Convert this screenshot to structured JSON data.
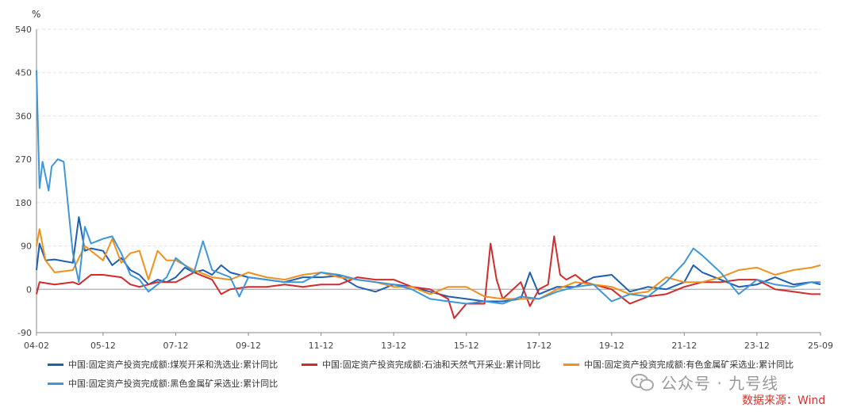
{
  "chart_data": {
    "type": "line",
    "unit_label": "%",
    "ylim": [
      -90,
      540
    ],
    "yticks": [
      -90,
      0,
      90,
      180,
      270,
      360,
      450,
      540
    ],
    "xticks": [
      "04-02",
      "05-12",
      "07-12",
      "09-12",
      "11-12",
      "13-12",
      "15-12",
      "17-12",
      "19-12",
      "21-12",
      "23-12",
      "25-09"
    ],
    "x_start": "2004-02",
    "x_end": "2025-09",
    "grid": "horizontal-dashed",
    "legend_position": "bottom",
    "series": [
      {
        "name": "中国:固定资产投资完成额:煤炭开采和洗选业:累计同比",
        "color": "#1f5fb0",
        "points": [
          [
            "2004-02",
            40
          ],
          [
            "2004-03",
            95
          ],
          [
            "2004-05",
            60
          ],
          [
            "2004-08",
            62
          ],
          [
            "2005-02",
            55
          ],
          [
            "2005-04",
            150
          ],
          [
            "2005-06",
            80
          ],
          [
            "2005-08",
            85
          ],
          [
            "2005-12",
            80
          ],
          [
            "2006-03",
            50
          ],
          [
            "2006-06",
            65
          ],
          [
            "2006-09",
            40
          ],
          [
            "2006-12",
            30
          ],
          [
            "2007-03",
            10
          ],
          [
            "2007-06",
            20
          ],
          [
            "2007-09",
            15
          ],
          [
            "2007-12",
            25
          ],
          [
            "2008-03",
            45
          ],
          [
            "2008-06",
            35
          ],
          [
            "2008-09",
            40
          ],
          [
            "2008-12",
            30
          ],
          [
            "2009-03",
            50
          ],
          [
            "2009-06",
            35
          ],
          [
            "2009-09",
            30
          ],
          [
            "2009-12",
            25
          ],
          [
            "2010-06",
            20
          ],
          [
            "2010-12",
            15
          ],
          [
            "2011-06",
            25
          ],
          [
            "2011-12",
            25
          ],
          [
            "2012-06",
            28
          ],
          [
            "2012-12",
            5
          ],
          [
            "2013-06",
            -5
          ],
          [
            "2013-12",
            10
          ],
          [
            "2014-06",
            5
          ],
          [
            "2014-12",
            -5
          ],
          [
            "2015-06",
            -15
          ],
          [
            "2015-12",
            -20
          ],
          [
            "2016-06",
            -25
          ],
          [
            "2016-12",
            -25
          ],
          [
            "2017-06",
            -20
          ],
          [
            "2017-09",
            35
          ],
          [
            "2017-12",
            -10
          ],
          [
            "2018-06",
            5
          ],
          [
            "2018-12",
            5
          ],
          [
            "2019-06",
            25
          ],
          [
            "2019-12",
            30
          ],
          [
            "2020-06",
            -5
          ],
          [
            "2020-12",
            5
          ],
          [
            "2021-06",
            0
          ],
          [
            "2021-12",
            15
          ],
          [
            "2022-03",
            50
          ],
          [
            "2022-06",
            35
          ],
          [
            "2022-12",
            20
          ],
          [
            "2023-06",
            5
          ],
          [
            "2023-12",
            10
          ],
          [
            "2024-06",
            25
          ],
          [
            "2024-12",
            10
          ],
          [
            "2025-06",
            15
          ],
          [
            "2025-09",
            10
          ]
        ]
      },
      {
        "name": "中国:固定资产投资完成额:石油和天然气开采业:累计同比",
        "color": "#d32b2b",
        "points": [
          [
            "2004-02",
            -10
          ],
          [
            "2004-03",
            15
          ],
          [
            "2004-08",
            10
          ],
          [
            "2005-02",
            15
          ],
          [
            "2005-04",
            10
          ],
          [
            "2005-08",
            30
          ],
          [
            "2005-12",
            30
          ],
          [
            "2006-06",
            25
          ],
          [
            "2006-09",
            10
          ],
          [
            "2006-12",
            5
          ],
          [
            "2007-06",
            15
          ],
          [
            "2007-12",
            15
          ],
          [
            "2008-06",
            35
          ],
          [
            "2008-12",
            20
          ],
          [
            "2009-03",
            -10
          ],
          [
            "2009-06",
            0
          ],
          [
            "2009-12",
            5
          ],
          [
            "2010-06",
            5
          ],
          [
            "2010-12",
            10
          ],
          [
            "2011-06",
            5
          ],
          [
            "2011-12",
            10
          ],
          [
            "2012-06",
            10
          ],
          [
            "2012-12",
            25
          ],
          [
            "2013-06",
            20
          ],
          [
            "2013-12",
            20
          ],
          [
            "2014-06",
            5
          ],
          [
            "2014-12",
            0
          ],
          [
            "2015-06",
            -20
          ],
          [
            "2015-08",
            -60
          ],
          [
            "2015-12",
            -30
          ],
          [
            "2016-06",
            -30
          ],
          [
            "2016-08",
            95
          ],
          [
            "2016-10",
            20
          ],
          [
            "2016-12",
            -20
          ],
          [
            "2017-06",
            15
          ],
          [
            "2017-09",
            -35
          ],
          [
            "2017-12",
            0
          ],
          [
            "2018-03",
            10
          ],
          [
            "2018-05",
            110
          ],
          [
            "2018-07",
            30
          ],
          [
            "2018-09",
            20
          ],
          [
            "2018-12",
            30
          ],
          [
            "2019-03",
            15
          ],
          [
            "2019-06",
            10
          ],
          [
            "2019-12",
            0
          ],
          [
            "2020-06",
            -30
          ],
          [
            "2020-12",
            -15
          ],
          [
            "2021-06",
            -10
          ],
          [
            "2021-12",
            5
          ],
          [
            "2022-06",
            15
          ],
          [
            "2022-12",
            15
          ],
          [
            "2023-06",
            20
          ],
          [
            "2023-12",
            20
          ],
          [
            "2024-06",
            0
          ],
          [
            "2024-12",
            -5
          ],
          [
            "2025-06",
            -10
          ],
          [
            "2025-09",
            -10
          ]
        ]
      },
      {
        "name": "中国:固定资产投资完成额:有色金属矿采选业:累计同比",
        "color": "#f0911e",
        "points": [
          [
            "2004-02",
            90
          ],
          [
            "2004-03",
            125
          ],
          [
            "2004-05",
            60
          ],
          [
            "2004-08",
            35
          ],
          [
            "2005-02",
            40
          ],
          [
            "2005-06",
            90
          ],
          [
            "2005-12",
            60
          ],
          [
            "2006-03",
            105
          ],
          [
            "2006-06",
            55
          ],
          [
            "2006-09",
            75
          ],
          [
            "2006-12",
            80
          ],
          [
            "2007-03",
            20
          ],
          [
            "2007-06",
            80
          ],
          [
            "2007-09",
            60
          ],
          [
            "2007-12",
            60
          ],
          [
            "2008-06",
            40
          ],
          [
            "2008-12",
            25
          ],
          [
            "2009-06",
            20
          ],
          [
            "2009-12",
            35
          ],
          [
            "2010-06",
            25
          ],
          [
            "2010-12",
            20
          ],
          [
            "2011-06",
            30
          ],
          [
            "2011-12",
            35
          ],
          [
            "2012-06",
            25
          ],
          [
            "2012-12",
            20
          ],
          [
            "2013-06",
            15
          ],
          [
            "2013-12",
            5
          ],
          [
            "2014-06",
            5
          ],
          [
            "2014-12",
            -10
          ],
          [
            "2015-06",
            5
          ],
          [
            "2015-12",
            5
          ],
          [
            "2016-06",
            -15
          ],
          [
            "2016-12",
            -20
          ],
          [
            "2017-06",
            -20
          ],
          [
            "2017-12",
            -20
          ],
          [
            "2018-06",
            0
          ],
          [
            "2018-12",
            15
          ],
          [
            "2019-06",
            10
          ],
          [
            "2019-12",
            5
          ],
          [
            "2020-06",
            -10
          ],
          [
            "2020-12",
            -5
          ],
          [
            "2021-06",
            25
          ],
          [
            "2021-12",
            15
          ],
          [
            "2022-06",
            15
          ],
          [
            "2022-12",
            25
          ],
          [
            "2023-06",
            40
          ],
          [
            "2023-12",
            45
          ],
          [
            "2024-06",
            30
          ],
          [
            "2024-12",
            40
          ],
          [
            "2025-06",
            45
          ],
          [
            "2025-09",
            50
          ]
        ]
      },
      {
        "name": "中国:固定资产投资完成额:黑色金属矿采选业:累计同比",
        "color": "#3d97d9",
        "points": [
          [
            "2004-02",
            455
          ],
          [
            "2004-03",
            210
          ],
          [
            "2004-04",
            265
          ],
          [
            "2004-06",
            205
          ],
          [
            "2004-07",
            255
          ],
          [
            "2004-09",
            270
          ],
          [
            "2004-11",
            265
          ],
          [
            "2005-02",
            75
          ],
          [
            "2005-04",
            15
          ],
          [
            "2005-06",
            130
          ],
          [
            "2005-08",
            95
          ],
          [
            "2005-12",
            105
          ],
          [
            "2006-03",
            110
          ],
          [
            "2006-06",
            75
          ],
          [
            "2006-09",
            30
          ],
          [
            "2006-12",
            20
          ],
          [
            "2007-03",
            -5
          ],
          [
            "2007-06",
            10
          ],
          [
            "2007-09",
            25
          ],
          [
            "2007-12",
            65
          ],
          [
            "2008-06",
            35
          ],
          [
            "2008-09",
            100
          ],
          [
            "2008-12",
            40
          ],
          [
            "2009-06",
            25
          ],
          [
            "2009-09",
            -15
          ],
          [
            "2009-12",
            25
          ],
          [
            "2010-06",
            20
          ],
          [
            "2010-12",
            15
          ],
          [
            "2011-06",
            15
          ],
          [
            "2011-12",
            35
          ],
          [
            "2012-06",
            30
          ],
          [
            "2012-12",
            20
          ],
          [
            "2013-06",
            15
          ],
          [
            "2013-12",
            10
          ],
          [
            "2014-06",
            0
          ],
          [
            "2014-12",
            -20
          ],
          [
            "2015-06",
            -25
          ],
          [
            "2015-12",
            -30
          ],
          [
            "2016-06",
            -25
          ],
          [
            "2016-12",
            -30
          ],
          [
            "2017-06",
            -15
          ],
          [
            "2017-12",
            -20
          ],
          [
            "2018-06",
            -5
          ],
          [
            "2018-12",
            5
          ],
          [
            "2019-06",
            10
          ],
          [
            "2019-12",
            -25
          ],
          [
            "2020-06",
            -10
          ],
          [
            "2020-12",
            -15
          ],
          [
            "2021-06",
            15
          ],
          [
            "2021-12",
            55
          ],
          [
            "2022-03",
            85
          ],
          [
            "2022-06",
            70
          ],
          [
            "2022-12",
            35
          ],
          [
            "2023-06",
            -10
          ],
          [
            "2023-12",
            20
          ],
          [
            "2024-06",
            10
          ],
          [
            "2024-12",
            5
          ],
          [
            "2025-06",
            15
          ],
          [
            "2025-09",
            15
          ]
        ]
      }
    ]
  },
  "watermark": {
    "text": "公众号 · 九号线",
    "icon": "wechat-icon"
  },
  "source": {
    "text": "数据来源：Wind",
    "color": "#d9302c"
  }
}
